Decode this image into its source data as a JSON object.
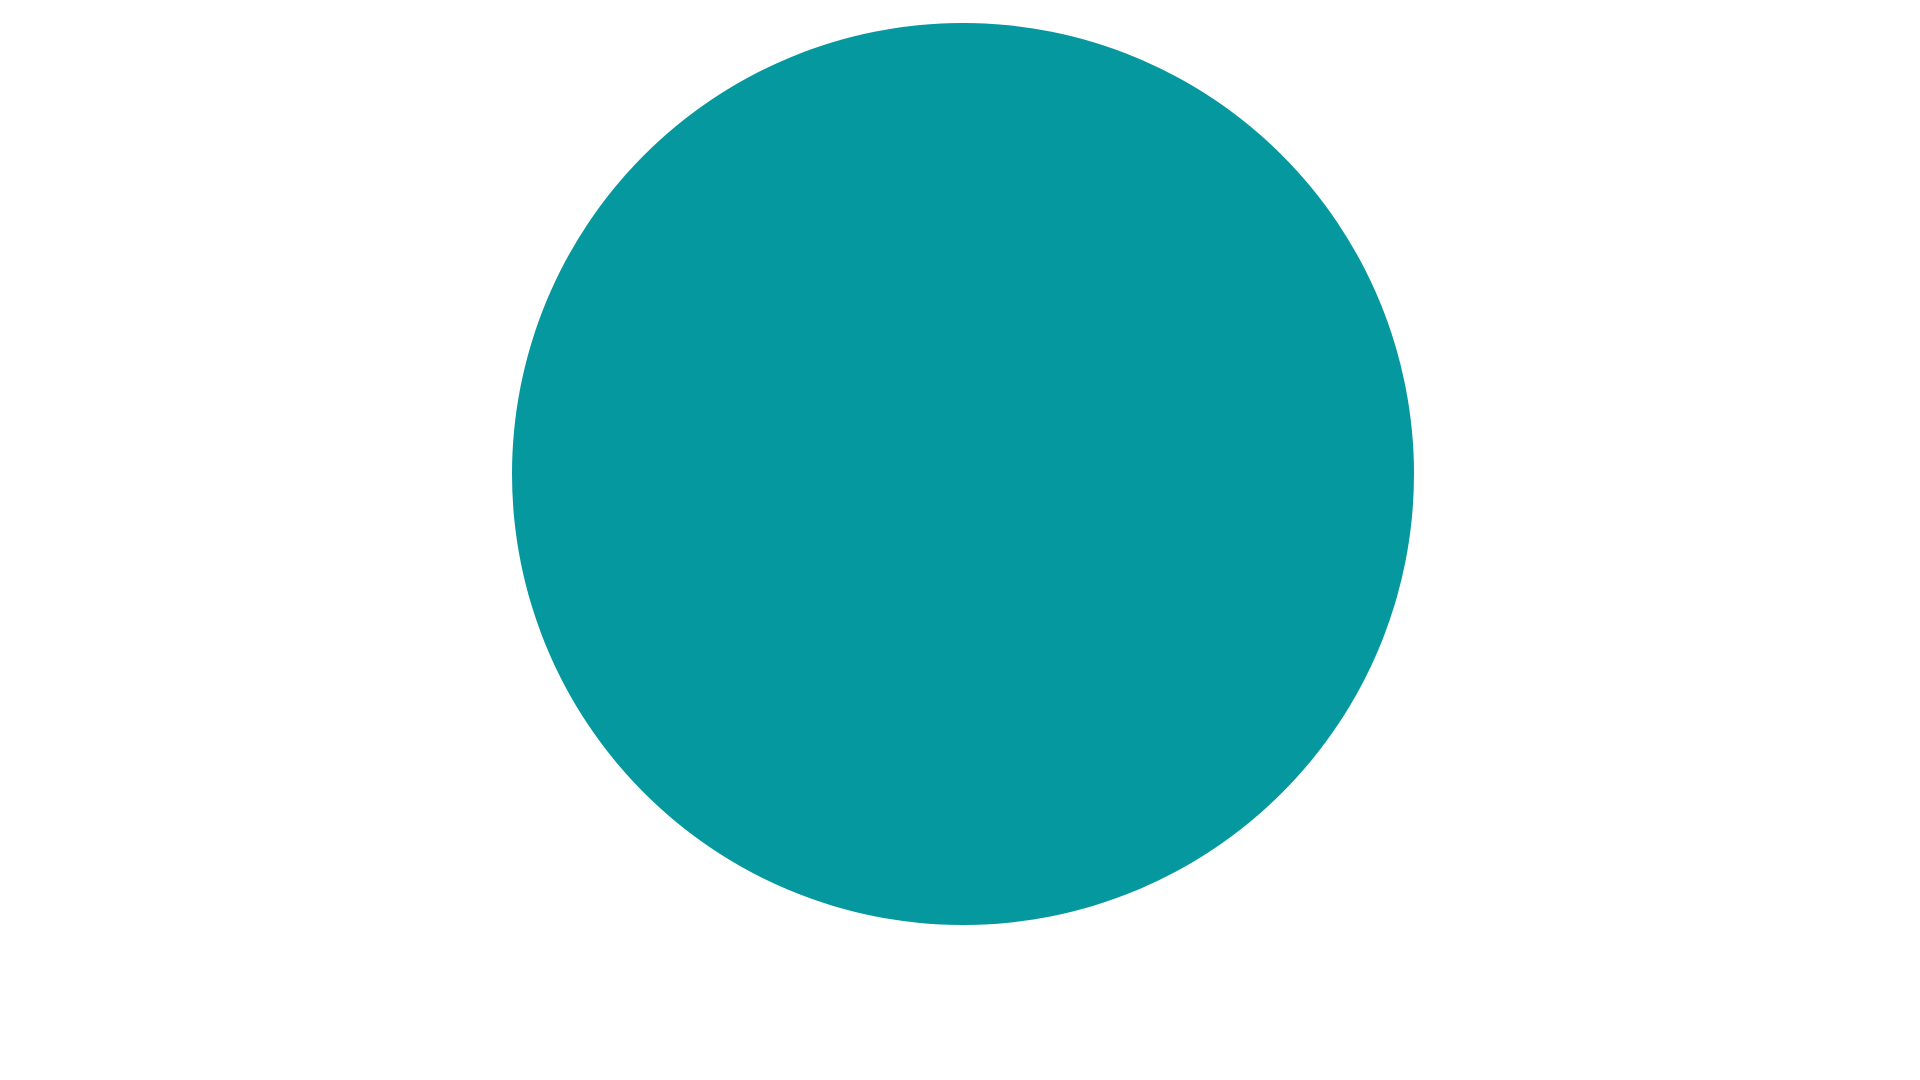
{
  "chart_data": {
    "type": "pie",
    "series": [
      {
        "values": [
          100
        ]
      }
    ],
    "colors": [
      "#05989f"
    ],
    "legend": "none"
  }
}
